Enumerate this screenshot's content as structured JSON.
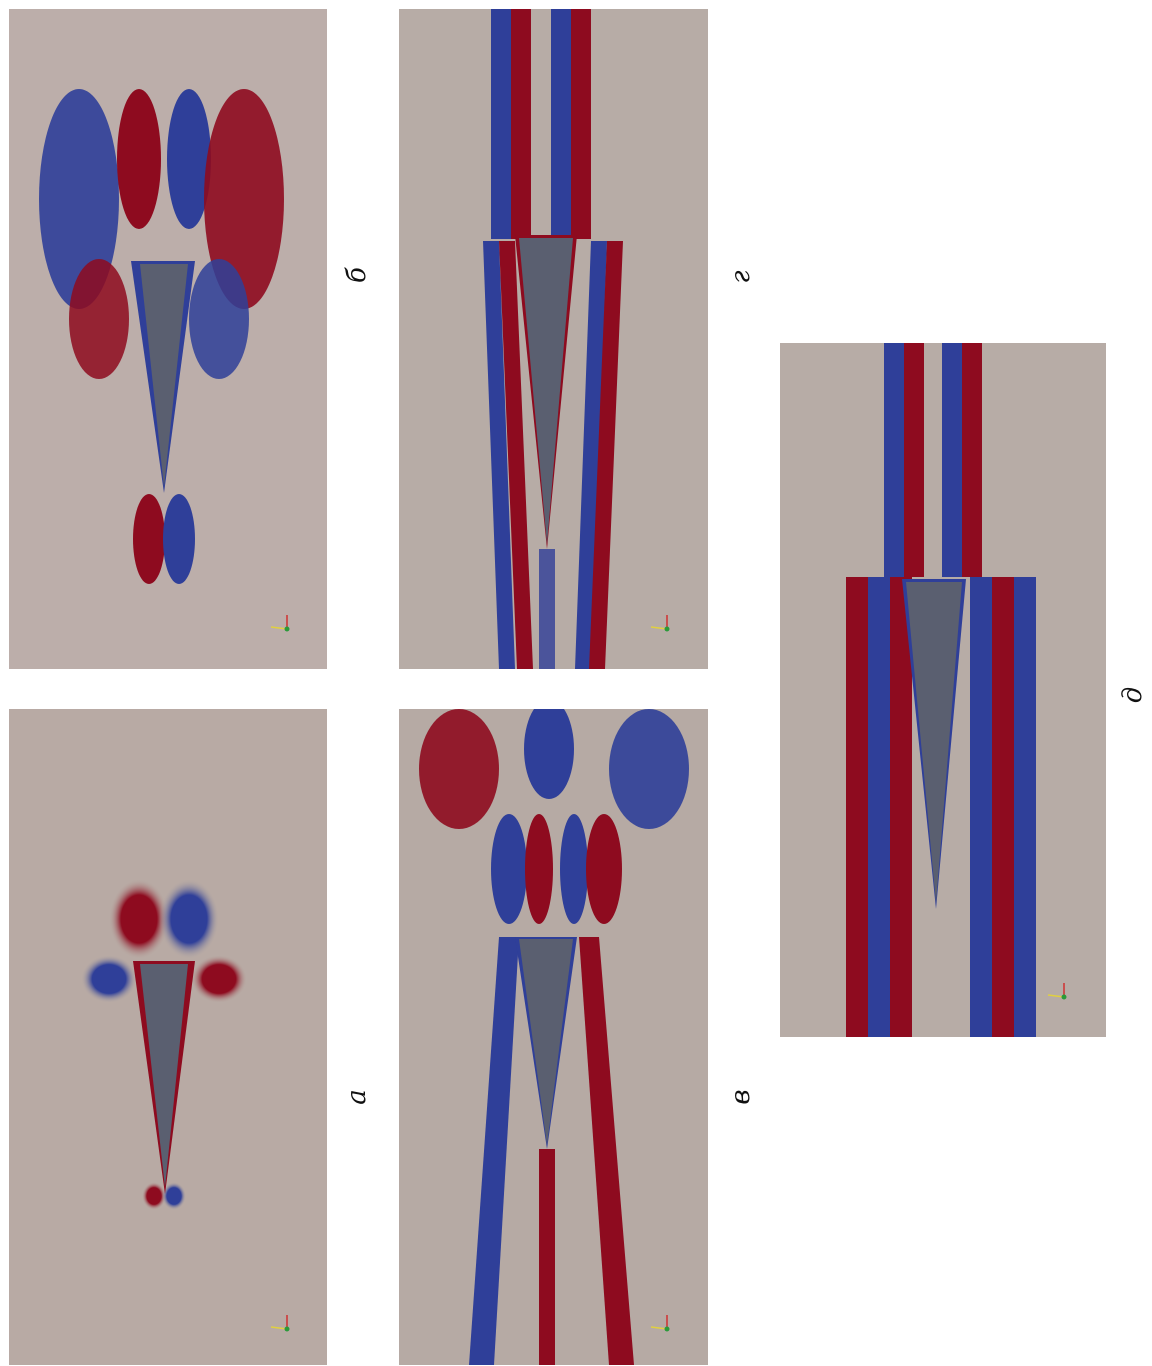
{
  "figure": {
    "panels": [
      {
        "id": "a",
        "label": "а"
      },
      {
        "id": "b",
        "label": "б"
      },
      {
        "id": "v",
        "label": "в"
      },
      {
        "id": "g",
        "label": "г"
      },
      {
        "id": "d",
        "label": "д"
      }
    ]
  },
  "colors": {
    "red": "#8e0b1f",
    "blue": "#2f3f99",
    "neutral": "#b6aaa2",
    "body": "#5a5f70",
    "light_red": "#d99a86",
    "light_blue": "#8ea5cf"
  }
}
